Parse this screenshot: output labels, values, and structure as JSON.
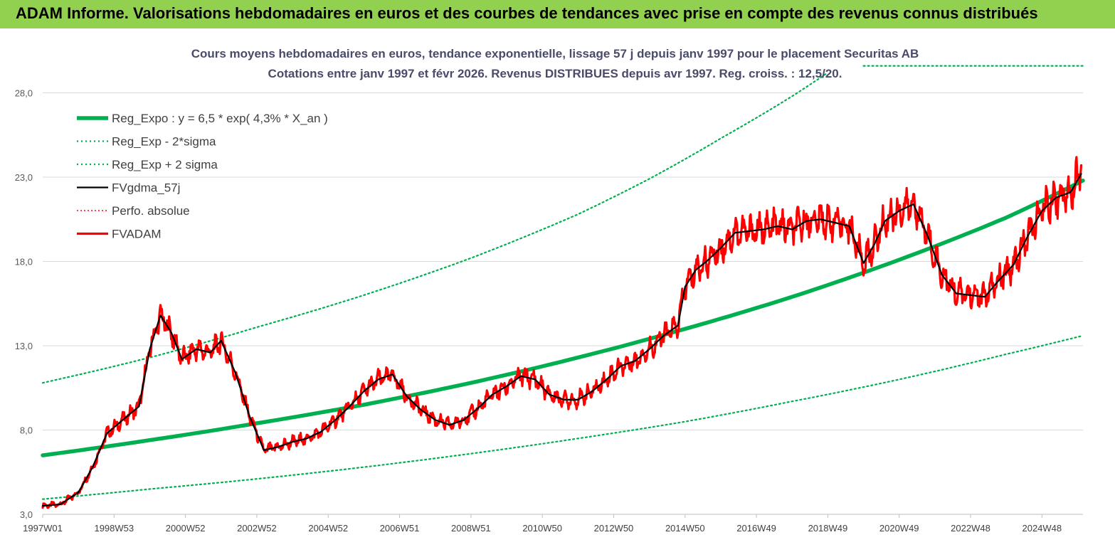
{
  "banner": {
    "title": "ADAM Informe. Valorisations hebdomadaires en euros et des courbes de tendances avec prise en compte des revenus connus distribués"
  },
  "colors": {
    "banner_bg": "#92d050",
    "trend": "#00b050",
    "band": "#00b050",
    "fvgdma": "#000000",
    "perfo": "#ff0000",
    "fvadam": "#ff0000",
    "grid": "#d9d9d9"
  },
  "chart_data": {
    "type": "line",
    "title_lines": [
      "Cours moyens hebdomadaires en euros, tendance exponentielle, lissage 57 j depuis janv 1997 pour le placement Securitas AB",
      "Cotations entre janv 1997 et févr 2026. Revenus DISTRIBUES depuis avr 1997. Reg. croiss. : 12,5/20."
    ],
    "xlabel": "",
    "ylabel": "",
    "x_unit": "year",
    "xlim": [
      1997.0,
      2026.15
    ],
    "ylim": [
      3.0,
      29.5
    ],
    "y_ticks": [
      3.0,
      8.0,
      13.0,
      18.0,
      23.0,
      28.0
    ],
    "y_tick_labels": [
      "3,0",
      "8,0",
      "13,0",
      "18,0",
      "23,0",
      "28,0"
    ],
    "x_ticks": [
      1997.0,
      1999.0,
      2001.0,
      2003.0,
      2005.0,
      2007.0,
      2009.0,
      2011.0,
      2013.0,
      2015.0,
      2017.0,
      2019.0,
      2021.0,
      2023.0,
      2025.0
    ],
    "x_tick_labels": [
      "1997W01",
      "1998W53",
      "2000W52",
      "2002W52",
      "2004W52",
      "2006W51",
      "2008W51",
      "2010W50",
      "2012W50",
      "2014W50",
      "2016W49",
      "2018W49",
      "2020W49",
      "2022W48",
      "2024W48"
    ],
    "grid": "horizontal",
    "legend_position": "top-left",
    "legend": [
      "Reg_Expo : y = 6,5 * exp( 4,3% *  X_an )",
      "Reg_Exp - 2*sigma",
      "Reg_Exp + 2 sigma",
      "FVgdma_57j",
      "Perfo. absolue",
      "FVADAM"
    ],
    "series": [
      {
        "name": "Reg_Expo : y = 6,5 * exp( 4,3% *  X_an )",
        "style": "thick",
        "x": [
          1997.0,
          2000.0,
          2003.0,
          2006.0,
          2009.0,
          2012.0,
          2015.0,
          2018.0,
          2021.0,
          2024.0,
          2026.15
        ],
        "values": [
          6.5,
          7.4,
          8.4,
          9.5,
          10.8,
          12.3,
          14.0,
          15.9,
          18.1,
          20.6,
          22.8
        ]
      },
      {
        "name": "Reg_Exp - 2*sigma",
        "style": "dotted",
        "x": [
          1997.0,
          2000.0,
          2003.0,
          2006.0,
          2009.0,
          2012.0,
          2015.0,
          2018.0,
          2021.0,
          2024.0,
          2026.15
        ],
        "values": [
          3.9,
          4.5,
          5.1,
          5.8,
          6.6,
          7.5,
          8.5,
          9.7,
          11.0,
          12.5,
          13.6
        ]
      },
      {
        "name": "Reg_Exp + 2 sigma",
        "style": "dotted",
        "x": [
          1997.0,
          2000.0,
          2003.0,
          2006.0,
          2009.0,
          2012.0,
          2014.0,
          2016.0,
          2018.0,
          2019.0,
          2020.0,
          2022.0,
          2024.0,
          2026.15
        ],
        "values": [
          10.8,
          12.3,
          14.1,
          16.0,
          18.2,
          20.8,
          22.9,
          25.3,
          27.8,
          29.2,
          29.6,
          29.6,
          29.6,
          29.6
        ],
        "note_clip_at": 29.2,
        "note_resume_from": 2020.0
      },
      {
        "name": "FVgdma_57j",
        "style": "solid",
        "x": [
          1997.0,
          1997.5,
          1998.0,
          1998.4,
          1998.8,
          1999.3,
          1999.7,
          2000.0,
          2000.3,
          2000.6,
          2000.9,
          2001.3,
          2001.7,
          2002.0,
          2002.4,
          2002.8,
          2003.2,
          2003.6,
          2004.0,
          2004.4,
          2004.8,
          2005.2,
          2005.6,
          2006.0,
          2006.4,
          2006.8,
          2007.2,
          2007.6,
          2008.0,
          2008.4,
          2008.8,
          2009.2,
          2009.6,
          2010.0,
          2010.4,
          2010.8,
          2011.2,
          2011.6,
          2012.0,
          2012.4,
          2012.8,
          2013.2,
          2013.6,
          2014.0,
          2014.4,
          2014.8,
          2015.0,
          2015.3,
          2015.6,
          2016.0,
          2016.4,
          2016.8,
          2017.2,
          2017.6,
          2018.0,
          2018.4,
          2018.8,
          2019.2,
          2019.6,
          2020.0,
          2020.3,
          2020.6,
          2021.0,
          2021.4,
          2021.8,
          2022.2,
          2022.6,
          2023.0,
          2023.4,
          2023.8,
          2024.2,
          2024.6,
          2025.0,
          2025.4,
          2025.8,
          2026.1
        ],
        "values": [
          3.5,
          3.6,
          4.3,
          5.8,
          7.8,
          8.7,
          9.4,
          12.8,
          14.8,
          13.8,
          12.2,
          12.8,
          12.6,
          13.3,
          11.4,
          8.8,
          6.8,
          7.0,
          7.3,
          7.5,
          7.9,
          8.6,
          9.4,
          10.3,
          11.0,
          11.3,
          10.0,
          9.2,
          8.6,
          8.3,
          8.6,
          9.3,
          10.1,
          10.6,
          11.2,
          11.0,
          10.1,
          9.8,
          9.8,
          10.3,
          11.0,
          11.8,
          12.1,
          12.8,
          13.6,
          14.2,
          16.5,
          17.5,
          18.0,
          18.8,
          19.7,
          19.8,
          19.9,
          20.1,
          19.9,
          20.4,
          20.5,
          20.3,
          20.1,
          17.9,
          19.0,
          20.4,
          21.0,
          21.4,
          19.5,
          17.2,
          16.1,
          16.0,
          15.9,
          16.9,
          17.8,
          19.5,
          21.0,
          21.8,
          22.1,
          23.2
        ]
      },
      {
        "name": "Perfo. absolue",
        "style": "dotted",
        "x": [],
        "values": []
      },
      {
        "name": "FVADAM",
        "style": "thick",
        "x": [
          1997.0,
          1997.5,
          1998.0,
          1998.4,
          1998.8,
          1999.3,
          1999.7,
          2000.0,
          2000.3,
          2000.6,
          2000.9,
          2001.3,
          2001.7,
          2002.0,
          2002.4,
          2002.8,
          2003.2,
          2003.6,
          2004.0,
          2004.4,
          2004.8,
          2005.2,
          2005.6,
          2006.0,
          2006.4,
          2006.8,
          2007.2,
          2007.6,
          2008.0,
          2008.4,
          2008.8,
          2009.2,
          2009.6,
          2010.0,
          2010.4,
          2010.8,
          2011.2,
          2011.6,
          2012.0,
          2012.4,
          2012.8,
          2013.2,
          2013.6,
          2014.0,
          2014.4,
          2014.8,
          2015.0,
          2015.3,
          2015.6,
          2016.0,
          2016.4,
          2016.8,
          2017.2,
          2017.6,
          2018.0,
          2018.4,
          2018.8,
          2019.2,
          2019.6,
          2020.0,
          2020.3,
          2020.6,
          2021.0,
          2021.4,
          2021.8,
          2022.2,
          2022.6,
          2023.0,
          2023.4,
          2023.8,
          2024.2,
          2024.6,
          2025.0,
          2025.4,
          2025.8,
          2026.1
        ],
        "values": [
          3.5,
          3.6,
          4.3,
          5.8,
          7.8,
          8.7,
          9.4,
          12.8,
          14.8,
          13.8,
          12.2,
          12.8,
          12.6,
          13.3,
          11.4,
          8.8,
          6.8,
          7.0,
          7.3,
          7.5,
          7.9,
          8.6,
          9.4,
          10.3,
          11.0,
          11.3,
          10.0,
          9.2,
          8.6,
          8.3,
          8.6,
          9.3,
          10.1,
          10.6,
          11.2,
          11.0,
          10.1,
          9.8,
          9.8,
          10.3,
          11.0,
          11.8,
          12.1,
          12.8,
          13.6,
          14.2,
          16.5,
          17.5,
          18.0,
          18.8,
          19.7,
          19.8,
          19.9,
          20.1,
          19.9,
          20.4,
          20.5,
          20.3,
          20.1,
          17.9,
          19.0,
          20.4,
          21.0,
          21.4,
          19.5,
          17.2,
          16.1,
          16.0,
          15.9,
          16.9,
          17.8,
          19.5,
          21.0,
          21.8,
          22.1,
          23.7
        ]
      }
    ]
  }
}
